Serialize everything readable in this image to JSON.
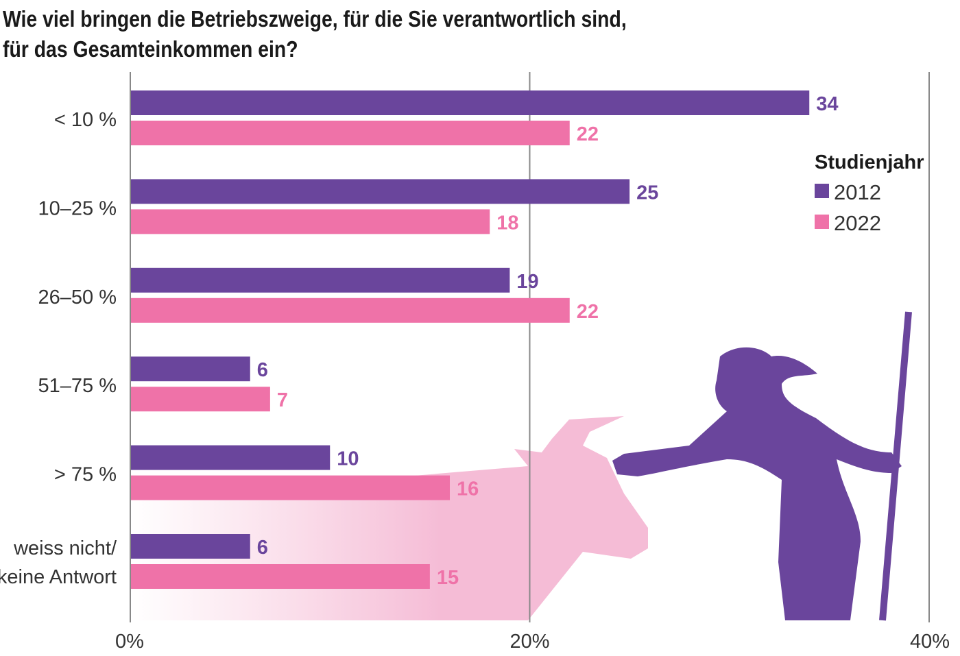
{
  "title_line1": "Wie viel bringen die Betriebszweige, für die Sie verantwortlich sind,",
  "title_line2": "für das Gesamteinkommen ein?",
  "chart_data": {
    "type": "bar",
    "orientation": "horizontal",
    "title": "Wie viel bringen die Betriebszweige, für die Sie verantwortlich sind, für das Gesamteinkommen ein?",
    "categories": [
      "< 10%",
      "10–25%",
      "26–50%",
      "51–75%",
      "> 75%",
      "weiss nicht/ keine Antwort"
    ],
    "series": [
      {
        "name": "2012",
        "color": "#6a459c",
        "values": [
          34,
          25,
          19,
          6,
          10,
          6
        ]
      },
      {
        "name": "2022",
        "color": "#ef72a8",
        "values": [
          22,
          18,
          22,
          7,
          16,
          15
        ]
      }
    ],
    "xlim": [
      0,
      40
    ],
    "xticks": [
      "0%",
      "20%",
      "40%"
    ],
    "legend_title": "Studienjahr",
    "legend_placement": "right",
    "grid": "vertical at 20% and 40%"
  }
}
